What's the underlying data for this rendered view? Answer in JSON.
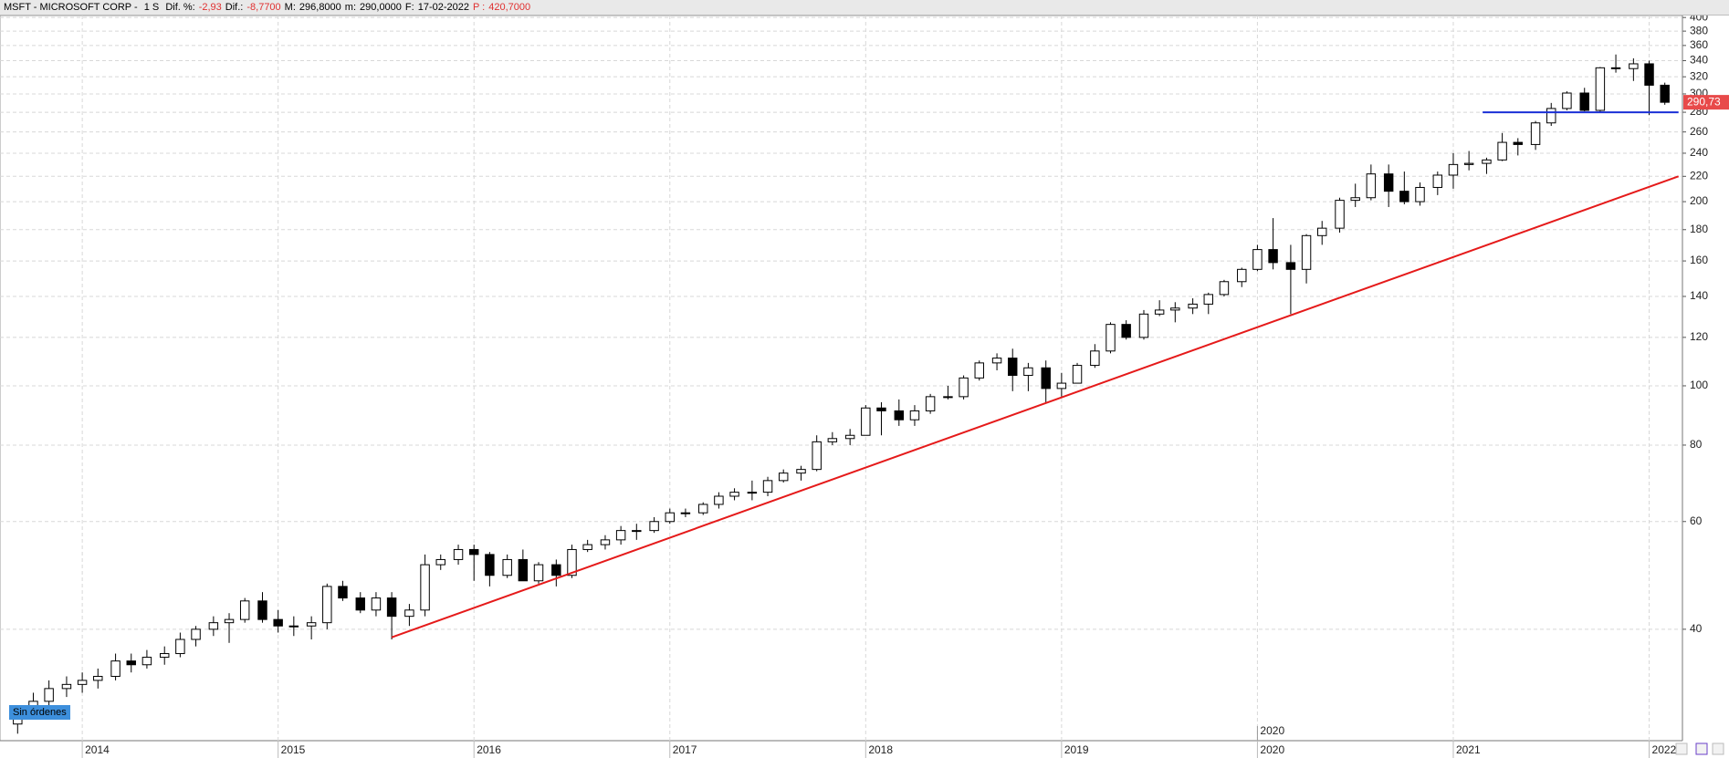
{
  "header": {
    "symbol": "MSFT - MICROSOFT CORP -",
    "period": "1 S",
    "items": [
      {
        "label": "Dif. %:",
        "value": "-2,93"
      },
      {
        "label": "Dif.:",
        "value": "-8,7700"
      },
      {
        "label": "M:",
        "value": "296,8000"
      },
      {
        "label": "m:",
        "value": "290,0000"
      },
      {
        "label": "F:",
        "value": "17-02-2022"
      },
      {
        "label": "P :",
        "value": "420,7000"
      }
    ]
  },
  "order_status": "Sin órdenes",
  "chart_data": {
    "type": "candlestick",
    "log_scale": true,
    "grid": true,
    "up_color": "#ffffff",
    "down_color": "#000000",
    "xlim": [
      2013.58,
      2022.17
    ],
    "xticks": [
      2014,
      2015,
      2016,
      2017,
      2018,
      2019,
      2020,
      2021,
      2022
    ],
    "x_markers": [
      2020
    ],
    "ylim": [
      26.3,
      403
    ],
    "yticks": [
      40,
      60,
      80,
      100,
      120,
      140,
      160,
      180,
      200,
      220,
      240,
      260,
      280,
      300,
      320,
      340,
      360,
      380,
      400
    ],
    "x": [
      2013.67,
      2013.75,
      2013.83,
      2013.92,
      2014.0,
      2014.08,
      2014.17,
      2014.25,
      2014.33,
      2014.42,
      2014.5,
      2014.58,
      2014.67,
      2014.75,
      2014.83,
      2014.92,
      2015.0,
      2015.08,
      2015.17,
      2015.25,
      2015.33,
      2015.42,
      2015.5,
      2015.58,
      2015.67,
      2015.75,
      2015.83,
      2015.92,
      2016.0,
      2016.08,
      2016.17,
      2016.25,
      2016.33,
      2016.42,
      2016.5,
      2016.58,
      2016.67,
      2016.75,
      2016.83,
      2016.92,
      2017.0,
      2017.08,
      2017.17,
      2017.25,
      2017.33,
      2017.42,
      2017.5,
      2017.58,
      2017.67,
      2017.75,
      2017.83,
      2017.92,
      2018.0,
      2018.08,
      2018.17,
      2018.25,
      2018.33,
      2018.42,
      2018.5,
      2018.58,
      2018.67,
      2018.75,
      2018.83,
      2018.92,
      2019.0,
      2019.08,
      2019.17,
      2019.25,
      2019.33,
      2019.42,
      2019.5,
      2019.58,
      2019.67,
      2019.75,
      2019.83,
      2019.92,
      2020.0,
      2020.08,
      2020.17,
      2020.25,
      2020.33,
      2020.42,
      2020.5,
      2020.58,
      2020.67,
      2020.75,
      2020.83,
      2020.92,
      2021.0,
      2021.08,
      2021.17,
      2021.25,
      2021.33,
      2021.42,
      2021.5,
      2021.58,
      2021.67,
      2021.75,
      2021.83,
      2021.92,
      2022.0,
      2022.08
    ],
    "candles": [
      [
        28,
        30,
        27,
        29
      ],
      [
        29,
        31.5,
        28.5,
        30.5
      ],
      [
        30.5,
        33,
        30,
        32
      ],
      [
        32,
        33.5,
        31,
        32.5
      ],
      [
        32.5,
        34,
        31.5,
        33
      ],
      [
        33,
        34.5,
        32,
        33.5
      ],
      [
        33.5,
        36.5,
        33,
        35.5
      ],
      [
        35.5,
        36.5,
        34,
        35
      ],
      [
        35,
        37,
        34.5,
        36
      ],
      [
        36,
        37.5,
        35,
        36.5
      ],
      [
        36.5,
        39.5,
        36,
        38.5
      ],
      [
        38.5,
        40.5,
        37.5,
        40
      ],
      [
        40,
        42,
        39,
        41
      ],
      [
        41,
        42.5,
        38,
        41.5
      ],
      [
        41.5,
        45,
        41,
        44.5
      ],
      [
        44.5,
        46,
        41,
        41.5
      ],
      [
        41.5,
        43,
        39.5,
        40.5
      ],
      [
        40.5,
        42,
        39,
        40.5
      ],
      [
        40.5,
        42,
        38.5,
        41
      ],
      [
        41,
        47.5,
        40,
        47
      ],
      [
        47,
        48,
        44.5,
        45
      ],
      [
        45,
        46,
        42.5,
        43
      ],
      [
        43,
        46,
        42,
        45
      ],
      [
        45,
        46,
        38.5,
        42
      ],
      [
        42,
        44,
        40.5,
        43
      ],
      [
        43,
        53,
        42,
        51
      ],
      [
        51,
        53,
        50,
        52
      ],
      [
        52,
        55,
        51,
        54
      ],
      [
        54,
        55,
        48,
        53
      ],
      [
        53,
        53.5,
        47,
        49
      ],
      [
        49,
        53,
        48.5,
        52
      ],
      [
        52,
        54,
        48,
        48
      ],
      [
        48,
        51.5,
        47.5,
        51
      ],
      [
        51,
        52,
        47,
        49
      ],
      [
        49,
        55,
        48.5,
        54
      ],
      [
        54,
        56,
        53.5,
        55
      ],
      [
        55,
        57,
        54,
        56
      ],
      [
        56,
        59,
        55,
        58
      ],
      [
        58,
        59.5,
        56,
        58
      ],
      [
        58,
        61,
        57.5,
        60
      ],
      [
        60,
        63,
        59.5,
        62
      ],
      [
        62,
        63,
        61,
        62
      ],
      [
        62,
        64.5,
        61.5,
        64
      ],
      [
        64,
        67,
        63,
        66
      ],
      [
        66,
        68,
        65,
        67
      ],
      [
        67,
        70,
        65,
        67
      ],
      [
        67,
        71,
        66,
        70
      ],
      [
        70,
        73,
        69.5,
        72
      ],
      [
        72,
        74,
        70,
        73
      ],
      [
        73,
        83,
        72.5,
        81
      ],
      [
        81,
        84,
        80,
        82
      ],
      [
        82,
        85,
        80,
        83
      ],
      [
        83,
        93,
        83,
        92
      ],
      [
        92,
        94,
        83,
        91
      ],
      [
        91,
        95,
        86,
        88
      ],
      [
        88,
        93,
        86,
        91
      ],
      [
        91,
        97,
        90,
        96
      ],
      [
        96,
        100,
        95,
        96
      ],
      [
        96,
        104,
        95,
        103
      ],
      [
        103,
        110,
        102,
        109
      ],
      [
        109,
        113,
        106,
        111
      ],
      [
        111,
        115,
        98,
        104
      ],
      [
        104,
        109,
        98,
        107
      ],
      [
        107,
        110,
        94,
        99
      ],
      [
        99,
        105,
        96,
        101
      ],
      [
        101,
        109,
        101,
        108
      ],
      [
        108,
        117,
        107,
        114
      ],
      [
        114,
        127,
        113,
        126
      ],
      [
        126,
        128,
        119,
        120
      ],
      [
        120,
        133,
        119,
        131
      ],
      [
        131,
        138,
        130,
        133
      ],
      [
        133,
        137,
        127,
        134
      ],
      [
        134,
        139,
        131,
        136
      ],
      [
        136,
        142,
        131,
        141
      ],
      [
        141,
        149,
        140,
        148
      ],
      [
        148,
        156,
        145,
        155
      ],
      [
        155,
        170,
        154,
        167
      ],
      [
        167,
        188,
        155,
        159
      ],
      [
        159,
        170,
        131,
        155
      ],
      [
        155,
        177,
        147,
        176
      ],
      [
        176,
        186,
        170,
        181
      ],
      [
        181,
        203,
        178,
        201
      ],
      [
        201,
        214,
        196,
        203
      ],
      [
        203,
        230,
        201,
        222
      ],
      [
        222,
        230,
        196,
        208
      ],
      [
        208,
        224,
        198,
        200
      ],
      [
        200,
        215,
        197,
        211
      ],
      [
        211,
        224,
        205,
        221
      ],
      [
        221,
        240,
        210,
        230
      ],
      [
        230,
        242,
        225,
        231
      ],
      [
        231,
        236,
        222,
        234
      ],
      [
        234,
        259,
        233,
        250
      ],
      [
        250,
        254,
        238,
        248
      ],
      [
        248,
        271,
        243,
        269
      ],
      [
        269,
        290,
        266,
        284
      ],
      [
        284,
        303,
        282,
        301
      ],
      [
        301,
        307,
        281,
        282
      ],
      [
        282,
        332,
        280,
        331
      ],
      [
        331,
        348,
        325,
        330
      ],
      [
        330,
        343,
        315,
        336
      ],
      [
        336,
        340,
        277,
        310
      ],
      [
        310,
        313,
        288,
        290.7
      ]
    ],
    "lines": [
      {
        "color": "#e51a1a",
        "x": [
          2015.58,
          2022.15
        ],
        "values": [
          38.8,
          220
        ]
      },
      {
        "color": "#1a2fd6",
        "x": [
          2021.15,
          2022.15
        ],
        "values": [
          280,
          280
        ]
      }
    ],
    "last_price": {
      "value": 290.73,
      "label": "290,73",
      "color": "#e84a4a"
    }
  }
}
